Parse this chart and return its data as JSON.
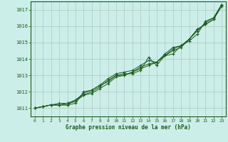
{
  "xlabel": "Graphe pression niveau de la mer (hPa)",
  "ylim": [
    1010.5,
    1017.5
  ],
  "xlim": [
    -0.5,
    23.5
  ],
  "yticks": [
    1011,
    1012,
    1013,
    1014,
    1015,
    1016,
    1017
  ],
  "xticks": [
    0,
    1,
    2,
    3,
    4,
    5,
    6,
    7,
    8,
    9,
    10,
    11,
    12,
    13,
    14,
    15,
    16,
    17,
    18,
    19,
    20,
    21,
    22,
    23
  ],
  "bg_color": "#cceee8",
  "grid_color_major": "#b0c8c0",
  "grid_color_minor": "#c0ddd8",
  "line_color": "#1a5c1a",
  "marker_color": "#1a5c1a",
  "series": [
    [
      1011.0,
      1011.1,
      1011.2,
      1011.3,
      1011.3,
      1011.5,
      1011.9,
      1012.1,
      1012.4,
      1012.6,
      1013.0,
      1013.1,
      1013.1,
      1013.3,
      1014.1,
      1013.6,
      1014.2,
      1014.3,
      1014.8,
      1015.1,
      1015.5,
      1016.3,
      1016.5,
      1017.3
    ],
    [
      1011.0,
      1011.1,
      1011.2,
      1011.2,
      1011.3,
      1011.4,
      1011.8,
      1011.9,
      1012.2,
      1012.5,
      1012.9,
      1013.0,
      1013.2,
      1013.4,
      1013.6,
      1013.8,
      1014.2,
      1014.6,
      1014.8,
      1015.2,
      1015.8,
      1016.1,
      1016.4,
      1017.2
    ],
    [
      1011.0,
      1011.1,
      1011.2,
      1011.2,
      1011.2,
      1011.3,
      1012.0,
      1012.1,
      1012.4,
      1012.8,
      1013.1,
      1013.2,
      1013.3,
      1013.6,
      1013.9,
      1013.8,
      1014.2,
      1014.5,
      1014.7,
      1015.2,
      1015.8,
      1016.1,
      1016.4,
      1017.3
    ],
    [
      1011.0,
      1011.1,
      1011.2,
      1011.2,
      1011.2,
      1011.5,
      1011.8,
      1012.0,
      1012.3,
      1012.7,
      1013.0,
      1013.0,
      1013.2,
      1013.5,
      1013.7,
      1013.8,
      1014.3,
      1014.7,
      1014.8,
      1015.2,
      1015.7,
      1016.2,
      1016.5,
      1017.3
    ]
  ]
}
